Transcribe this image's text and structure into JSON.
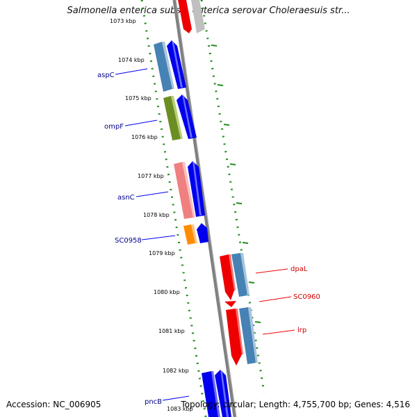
{
  "title": "Salmonella enterica subsp. enterica serovar Choleraesuis str...",
  "footer": {
    "accession": "Accession: NC_006905",
    "topology": "Topology: circular; Length: 4,755,700 bp; Genes: 4,516"
  },
  "ticks": [
    {
      "label": "1073 kbp"
    },
    {
      "label": "1074 kbp"
    },
    {
      "label": "1075 kbp"
    },
    {
      "label": "1076 kbp"
    },
    {
      "label": "1077 kbp"
    },
    {
      "label": "1078 kbp"
    },
    {
      "label": "1079 kbp"
    },
    {
      "label": "1080 kbp"
    },
    {
      "label": "1081 kbp"
    },
    {
      "label": "1082 kbp"
    },
    {
      "label": "1083 kbp"
    }
  ],
  "gene_labels": [
    {
      "name": "aspC",
      "strand": "reverse",
      "color": "#00008b"
    },
    {
      "name": "ompF",
      "strand": "reverse",
      "color": "#00008b"
    },
    {
      "name": "asnC",
      "strand": "reverse",
      "color": "#00008b"
    },
    {
      "name": "SC0958",
      "strand": "reverse",
      "color": "#00008b"
    },
    {
      "name": "dpaL",
      "strand": "forward",
      "color": "#cc0000"
    },
    {
      "name": "SC0960",
      "strand": "forward",
      "color": "#cc0000"
    },
    {
      "name": "lrp",
      "strand": "forward",
      "color": "#cc0000"
    },
    {
      "name": "pncB",
      "strand": "reverse",
      "color": "#00008b"
    }
  ],
  "colors": {
    "reverse_gene": "#0000ee",
    "forward_gene": "#ee0000",
    "backbone": "#808080",
    "tick_dots": "#228b22"
  }
}
